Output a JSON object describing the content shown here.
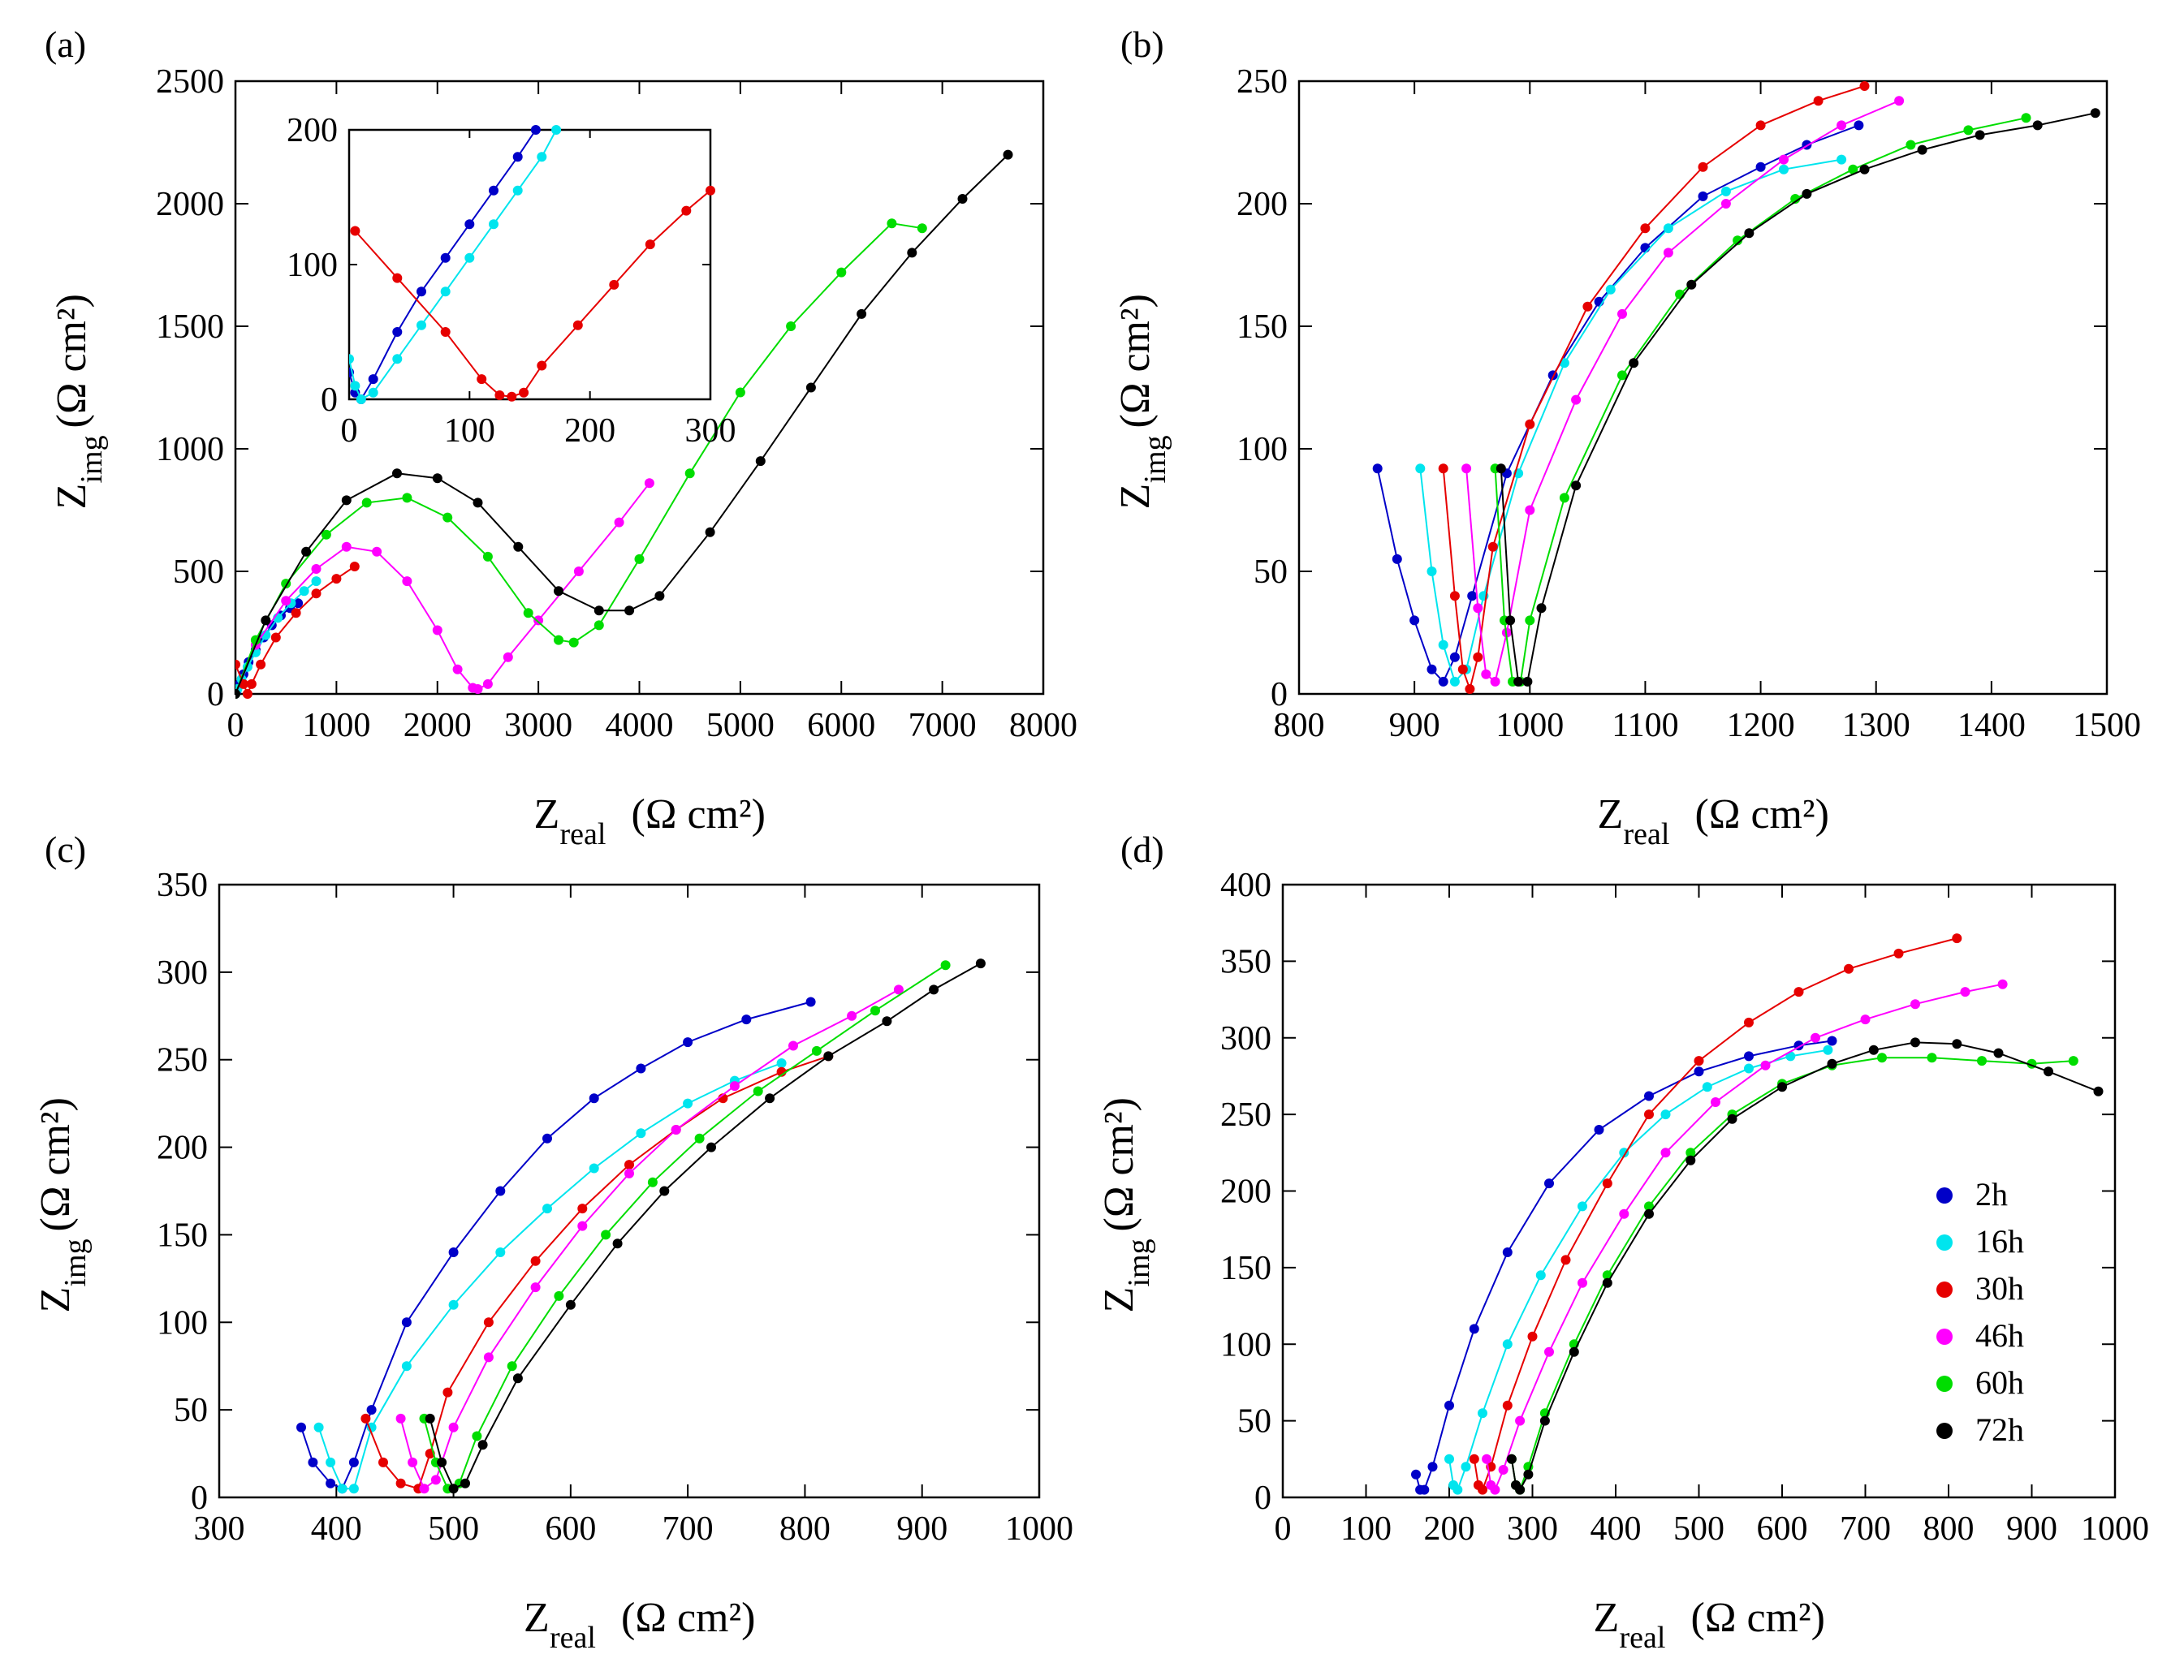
{
  "figure": {
    "legend": {
      "labels": [
        "2h",
        "16h",
        "30h",
        "46h",
        "60h",
        "72h"
      ]
    }
  },
  "series_colors": {
    "2h": "#0000c8",
    "16h": "#00e5ee",
    "30h": "#e60000",
    "46h": "#ff00ff",
    "60h": "#00dd00",
    "72h": "#000000"
  },
  "chart_data": [
    {
      "panel": "(a)",
      "type": "scatter",
      "xlabel": "Z",
      "xlabel_sub": "real",
      "xlabel_unit": "(Ω cm²)",
      "ylabel": "Z",
      "ylabel_sub": "img",
      "ylabel_unit": "(Ω cm²)",
      "xlim": [
        0,
        8000
      ],
      "ylim": [
        0,
        2500
      ],
      "xticks": [
        0,
        1000,
        2000,
        3000,
        4000,
        5000,
        6000,
        7000,
        8000
      ],
      "yticks": [
        0,
        500,
        1000,
        1500,
        2000,
        2500
      ],
      "series": [
        {
          "name": "2h",
          "x": [
            10,
            40,
            80,
            130,
            200,
            280,
            360,
            450,
            540,
            620
          ],
          "y": [
            10,
            40,
            80,
            130,
            180,
            230,
            280,
            320,
            350,
            370
          ]
        },
        {
          "name": "16h",
          "x": [
            20,
            60,
            120,
            200,
            300,
            420,
            550,
            680,
            800
          ],
          "y": [
            20,
            60,
            110,
            170,
            240,
            310,
            370,
            420,
            460
          ]
        },
        {
          "name": "30h",
          "x": [
            0,
            80,
            120,
            160,
            250,
            400,
            600,
            800,
            1000,
            1180
          ],
          "y": [
            120,
            40,
            0,
            40,
            120,
            230,
            330,
            410,
            470,
            520
          ]
        },
        {
          "name": "46h",
          "x": [
            0,
            200,
            500,
            800,
            1100,
            1400,
            1700,
            2000,
            2200,
            2350,
            2400,
            2500,
            2700,
            3000,
            3400,
            3800,
            4100
          ],
          "y": [
            0,
            200,
            380,
            510,
            600,
            580,
            460,
            260,
            100,
            25,
            20,
            40,
            150,
            300,
            500,
            700,
            860
          ]
        },
        {
          "name": "60h",
          "x": [
            0,
            200,
            500,
            900,
            1300,
            1700,
            2100,
            2500,
            2900,
            3200,
            3350,
            3600,
            4000,
            4500,
            5000,
            5500,
            6000,
            6500,
            6800
          ],
          "y": [
            0,
            220,
            450,
            650,
            780,
            800,
            720,
            560,
            330,
            220,
            210,
            280,
            550,
            900,
            1230,
            1500,
            1720,
            1920,
            1900
          ]
        },
        {
          "name": "72h",
          "x": [
            0,
            300,
            700,
            1100,
            1600,
            2000,
            2400,
            2800,
            3200,
            3600,
            3900,
            4200,
            4700,
            5200,
            5700,
            6200,
            6700,
            7200,
            7650
          ],
          "y": [
            0,
            300,
            580,
            790,
            900,
            880,
            780,
            600,
            420,
            340,
            340,
            400,
            660,
            950,
            1250,
            1550,
            1800,
            2020,
            2200
          ]
        }
      ],
      "inset": {
        "xlim": [
          0,
          300
        ],
        "ylim": [
          0,
          200
        ],
        "xticks": [
          0,
          100,
          200,
          300
        ],
        "yticks": [
          0,
          100,
          200
        ],
        "series": [
          {
            "name": "2h",
            "x": [
              0,
              5,
              10,
              20,
              40,
              60,
              80,
              100,
              120,
              140,
              155
            ],
            "y": [
              20,
              5,
              0,
              15,
              50,
              80,
              105,
              130,
              155,
              180,
              200
            ]
          },
          {
            "name": "16h",
            "x": [
              0,
              5,
              10,
              20,
              40,
              60,
              80,
              100,
              120,
              140,
              160,
              172
            ],
            "y": [
              30,
              10,
              0,
              5,
              30,
              55,
              80,
              105,
              130,
              155,
              180,
              200
            ]
          },
          {
            "name": "30h",
            "x": [
              5,
              40,
              80,
              110,
              125,
              135,
              145,
              160,
              190,
              220,
              250,
              280,
              300
            ],
            "y": [
              125,
              90,
              50,
              15,
              3,
              2,
              5,
              25,
              55,
              85,
              115,
              140,
              155
            ]
          }
        ]
      }
    },
    {
      "panel": "(b)",
      "type": "scatter",
      "xlabel": "Z",
      "xlabel_sub": "real",
      "xlabel_unit": "(Ω cm²)",
      "ylabel": "Z",
      "ylabel_sub": "img",
      "ylabel_unit": "(Ω cm²)",
      "xlim": [
        800,
        1500
      ],
      "ylim": [
        0,
        250
      ],
      "xticks": [
        800,
        900,
        1000,
        1100,
        1200,
        1300,
        1400,
        1500
      ],
      "yticks": [
        0,
        50,
        100,
        150,
        200,
        250
      ],
      "series": [
        {
          "name": "2h",
          "x": [
            868,
            885,
            900,
            915,
            925,
            935,
            950,
            980,
            1020,
            1060,
            1100,
            1150,
            1200,
            1240,
            1285
          ],
          "y": [
            92,
            55,
            30,
            10,
            5,
            15,
            40,
            90,
            130,
            160,
            182,
            203,
            215,
            224,
            232
          ]
        },
        {
          "name": "16h",
          "x": [
            905,
            915,
            925,
            935,
            945,
            960,
            990,
            1030,
            1070,
            1120,
            1170,
            1220,
            1270
          ],
          "y": [
            92,
            50,
            20,
            5,
            10,
            40,
            90,
            135,
            165,
            190,
            205,
            214,
            218
          ]
        },
        {
          "name": "30h",
          "x": [
            925,
            935,
            942,
            948,
            955,
            968,
            1000,
            1050,
            1100,
            1150,
            1200,
            1250,
            1290
          ],
          "y": [
            92,
            40,
            10,
            2,
            15,
            60,
            110,
            158,
            190,
            215,
            232,
            242,
            248
          ]
        },
        {
          "name": "46h",
          "x": [
            945,
            955,
            962,
            970,
            980,
            1000,
            1040,
            1080,
            1120,
            1170,
            1220,
            1270,
            1320
          ],
          "y": [
            92,
            35,
            8,
            5,
            25,
            75,
            120,
            155,
            180,
            200,
            218,
            232,
            242
          ]
        },
        {
          "name": "60h",
          "x": [
            970,
            978,
            985,
            992,
            1000,
            1030,
            1080,
            1130,
            1180,
            1230,
            1280,
            1330,
            1380,
            1430
          ],
          "y": [
            92,
            30,
            5,
            5,
            30,
            80,
            130,
            163,
            185,
            202,
            214,
            224,
            230,
            235
          ]
        },
        {
          "name": "72h",
          "x": [
            975,
            983,
            990,
            998,
            1010,
            1040,
            1090,
            1140,
            1190,
            1240,
            1290,
            1340,
            1390,
            1440,
            1490
          ],
          "y": [
            92,
            30,
            5,
            5,
            35,
            85,
            135,
            167,
            188,
            204,
            214,
            222,
            228,
            232,
            237
          ]
        }
      ]
    },
    {
      "panel": "(c)",
      "type": "scatter",
      "xlabel": "Z",
      "xlabel_sub": "real",
      "xlabel_unit": "(Ω cm²)",
      "ylabel": "Z",
      "ylabel_sub": "img",
      "ylabel_unit": "(Ω cm²)",
      "xlim": [
        300,
        1000
      ],
      "ylim": [
        0,
        350
      ],
      "xticks": [
        300,
        400,
        500,
        600,
        700,
        800,
        900,
        1000
      ],
      "yticks": [
        0,
        50,
        100,
        150,
        200,
        250,
        300,
        350
      ],
      "series": [
        {
          "name": "2h",
          "x": [
            370,
            380,
            395,
            405,
            415,
            430,
            460,
            500,
            540,
            580,
            620,
            660,
            700,
            750,
            805
          ],
          "y": [
            40,
            20,
            8,
            5,
            20,
            50,
            100,
            140,
            175,
            205,
            228,
            245,
            260,
            273,
            283
          ]
        },
        {
          "name": "16h",
          "x": [
            385,
            395,
            405,
            415,
            430,
            460,
            500,
            540,
            580,
            620,
            660,
            700,
            740,
            780
          ],
          "y": [
            40,
            20,
            5,
            5,
            40,
            75,
            110,
            140,
            165,
            188,
            208,
            225,
            238,
            248
          ]
        },
        {
          "name": "30h",
          "x": [
            425,
            440,
            455,
            470,
            480,
            495,
            530,
            570,
            610,
            650,
            690,
            730,
            780,
            820
          ],
          "y": [
            45,
            20,
            8,
            5,
            25,
            60,
            100,
            135,
            165,
            190,
            210,
            228,
            243,
            252
          ]
        },
        {
          "name": "46h",
          "x": [
            455,
            465,
            475,
            485,
            500,
            530,
            570,
            610,
            650,
            690,
            740,
            790,
            840,
            880
          ],
          "y": [
            45,
            20,
            5,
            10,
            40,
            80,
            120,
            155,
            185,
            210,
            235,
            258,
            275,
            290
          ]
        },
        {
          "name": "60h",
          "x": [
            475,
            485,
            495,
            505,
            520,
            550,
            590,
            630,
            670,
            710,
            760,
            810,
            860,
            920
          ],
          "y": [
            45,
            20,
            5,
            8,
            35,
            75,
            115,
            150,
            180,
            205,
            232,
            255,
            278,
            304
          ]
        },
        {
          "name": "72h",
          "x": [
            480,
            490,
            500,
            510,
            525,
            555,
            600,
            640,
            680,
            720,
            770,
            820,
            870,
            910,
            950
          ],
          "y": [
            45,
            20,
            5,
            8,
            30,
            68,
            110,
            145,
            175,
            200,
            228,
            252,
            272,
            290,
            305
          ]
        }
      ]
    },
    {
      "panel": "(d)",
      "type": "scatter",
      "xlabel": "Z",
      "xlabel_sub": "real",
      "xlabel_unit": "(Ω cm²)",
      "ylabel": "Z",
      "ylabel_sub": "img",
      "ylabel_unit": "(Ω cm²)",
      "xlim": [
        0,
        1000
      ],
      "ylim": [
        0,
        400
      ],
      "xticks": [
        0,
        100,
        200,
        300,
        400,
        500,
        600,
        700,
        800,
        900,
        1000
      ],
      "yticks": [
        0,
        50,
        100,
        150,
        200,
        250,
        300,
        350,
        400
      ],
      "legend_position": "bottom-right",
      "series": [
        {
          "name": "2h",
          "x": [
            160,
            165,
            170,
            180,
            200,
            230,
            270,
            320,
            380,
            440,
            500,
            560,
            620,
            660
          ],
          "y": [
            15,
            5,
            5,
            20,
            60,
            110,
            160,
            205,
            240,
            262,
            278,
            288,
            295,
            298
          ]
        },
        {
          "name": "16h",
          "x": [
            200,
            205,
            210,
            220,
            240,
            270,
            310,
            360,
            410,
            460,
            510,
            560,
            610,
            655
          ],
          "y": [
            25,
            8,
            5,
            20,
            55,
            100,
            145,
            190,
            225,
            250,
            268,
            280,
            288,
            292
          ]
        },
        {
          "name": "30h",
          "x": [
            230,
            235,
            240,
            250,
            270,
            300,
            340,
            390,
            440,
            500,
            560,
            620,
            680,
            740,
            810
          ],
          "y": [
            25,
            8,
            5,
            20,
            60,
            105,
            155,
            205,
            250,
            285,
            310,
            330,
            345,
            355,
            365
          ]
        },
        {
          "name": "46h",
          "x": [
            245,
            250,
            255,
            265,
            285,
            320,
            360,
            410,
            460,
            520,
            580,
            640,
            700,
            760,
            820,
            865
          ],
          "y": [
            25,
            8,
            5,
            18,
            50,
            95,
            140,
            185,
            225,
            258,
            282,
            300,
            312,
            322,
            330,
            335
          ]
        },
        {
          "name": "60h",
          "x": [
            275,
            280,
            285,
            295,
            315,
            350,
            390,
            440,
            490,
            540,
            600,
            660,
            720,
            780,
            840,
            900,
            950
          ],
          "y": [
            25,
            8,
            5,
            20,
            55,
            100,
            145,
            190,
            225,
            250,
            270,
            282,
            287,
            287,
            285,
            283,
            285
          ]
        },
        {
          "name": "72h",
          "x": [
            275,
            280,
            285,
            295,
            315,
            350,
            390,
            440,
            490,
            540,
            600,
            660,
            710,
            760,
            810,
            860,
            920,
            980
          ],
          "y": [
            25,
            8,
            5,
            15,
            50,
            95,
            140,
            185,
            220,
            247,
            268,
            283,
            292,
            297,
            296,
            290,
            278,
            265
          ]
        }
      ]
    }
  ]
}
